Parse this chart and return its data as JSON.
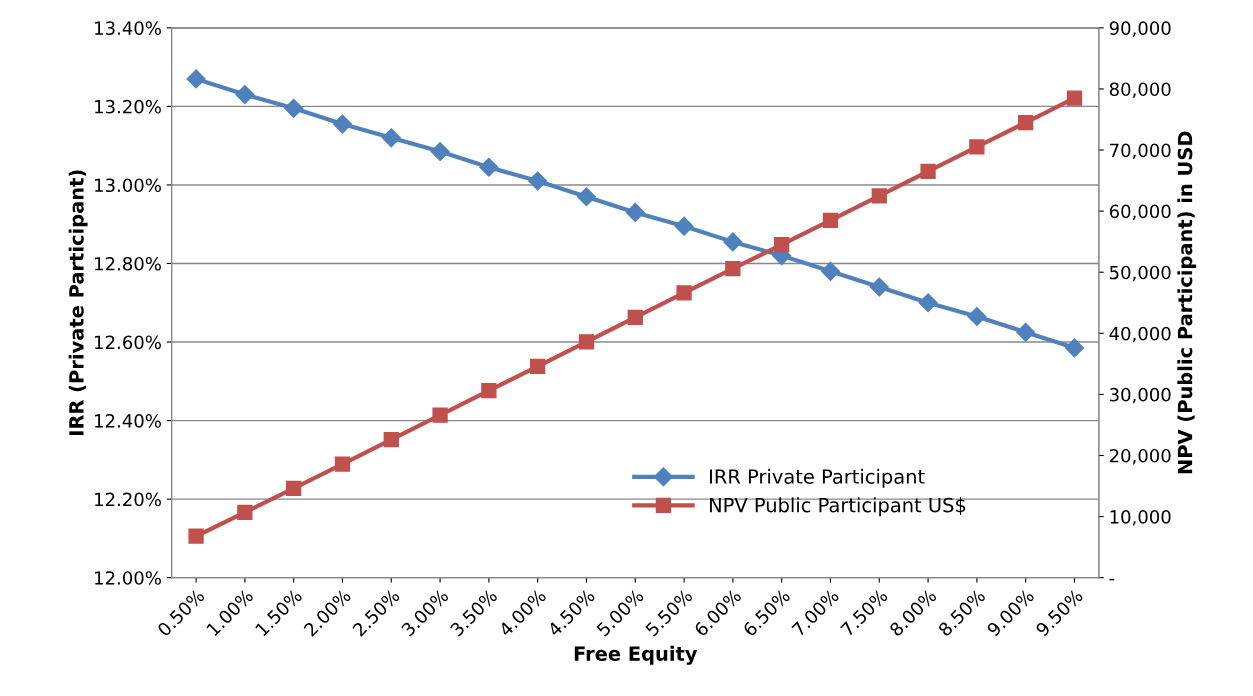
{
  "chart_data": {
    "type": "line",
    "xlabel": "Free Equity",
    "ylabel": "IRR (Private Participant)",
    "y2label": "NPV (Public Participant) in USD",
    "categories": [
      "0.50%",
      "1.00%",
      "1.50%",
      "2.00%",
      "2.50%",
      "3.00%",
      "3.50%",
      "4.00%",
      "4.50%",
      "5.00%",
      "5.50%",
      "6.00%",
      "6.50%",
      "7.00%",
      "7.50%",
      "8.00%",
      "8.50%",
      "9.00%",
      "9.50%"
    ],
    "series": [
      {
        "name": "IRR Private Participant",
        "color": "#4f81bd",
        "marker": "diamond",
        "values": [
          13.27,
          13.23,
          13.195,
          13.155,
          13.12,
          13.085,
          13.045,
          13.01,
          12.97,
          12.93,
          12.895,
          12.855,
          12.82,
          12.78,
          12.74,
          12.7,
          12.665,
          12.625,
          12.585
        ]
      },
      {
        "name": "NPV Public Participant US$",
        "color": "#c0504d",
        "marker": "square",
        "axis": "y2",
        "values": [
          6800,
          10700,
          14600,
          18600,
          22600,
          26600,
          30600,
          34600,
          38600,
          42600,
          46600,
          50600,
          54500,
          58500,
          62500,
          66500,
          70500,
          74500,
          78500
        ]
      }
    ],
    "ylim": [
      12.0,
      13.4
    ],
    "yticks": [
      {
        "value": 12.0,
        "label": "12.00%"
      },
      {
        "value": 12.2,
        "label": "12.20%"
      },
      {
        "value": 12.4,
        "label": "12.40%"
      },
      {
        "value": 12.6,
        "label": "12.60%"
      },
      {
        "value": 12.8,
        "label": "12.80%"
      },
      {
        "value": 13.0,
        "label": "13.00%"
      },
      {
        "value": 13.2,
        "label": "13.20%"
      },
      {
        "value": 13.4,
        "label": "13.40%"
      }
    ],
    "y2lim": [
      0,
      90000
    ],
    "y2ticks": [
      {
        "value": 0,
        "label": "-"
      },
      {
        "value": 10000,
        "label": "10,000"
      },
      {
        "value": 20000,
        "label": "20,000"
      },
      {
        "value": 30000,
        "label": "30,000"
      },
      {
        "value": 40000,
        "label": "40,000"
      },
      {
        "value": 50000,
        "label": "50,000"
      },
      {
        "value": 60000,
        "label": "60,000"
      },
      {
        "value": 70000,
        "label": "70,000"
      },
      {
        "value": 80000,
        "label": "80,000"
      },
      {
        "value": 90000,
        "label": "90,000"
      }
    ],
    "grid": "y",
    "legend": "bottom right",
    "line_style": "solid"
  }
}
